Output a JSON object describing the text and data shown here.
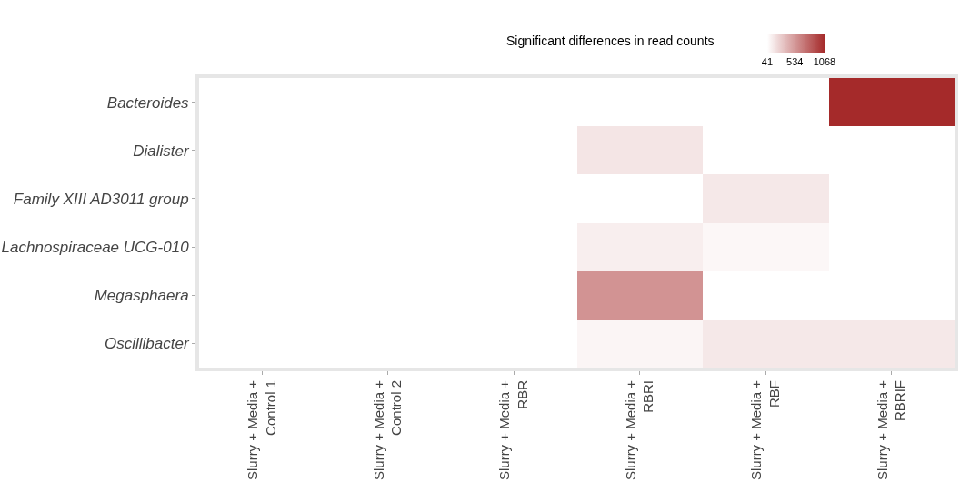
{
  "chart_data": {
    "type": "heatmap",
    "clabel": "Significant differences in read counts",
    "categories": [
      "Slurry + Media + Control 1",
      "Slurry + Media + Control 2",
      "Slurry + Media + RBR",
      "Slurry + Media + RBRI",
      "Slurry + Media + RBF",
      "Slurry + Media + RBRIF"
    ],
    "y_categories": [
      "Bacteroides",
      "Dialister",
      "Family XIII AD3011 group",
      "Lachnospiraceae UCG-010",
      "Megasphaera",
      "Oscillibacter"
    ],
    "cells": [
      [
        null,
        null,
        null,
        null,
        null,
        1068
      ],
      [
        null,
        null,
        null,
        165,
        null,
        null
      ],
      [
        null,
        null,
        null,
        null,
        150,
        null
      ],
      [
        null,
        null,
        null,
        125,
        80,
        null
      ],
      [
        null,
        null,
        null,
        560,
        null,
        null
      ],
      [
        null,
        null,
        null,
        90,
        150,
        150
      ]
    ],
    "clim": [
      41,
      1068
    ],
    "cticks": [
      41,
      534,
      1068
    ],
    "colors": [
      "#ffffff",
      "#a52a2a"
    ]
  }
}
